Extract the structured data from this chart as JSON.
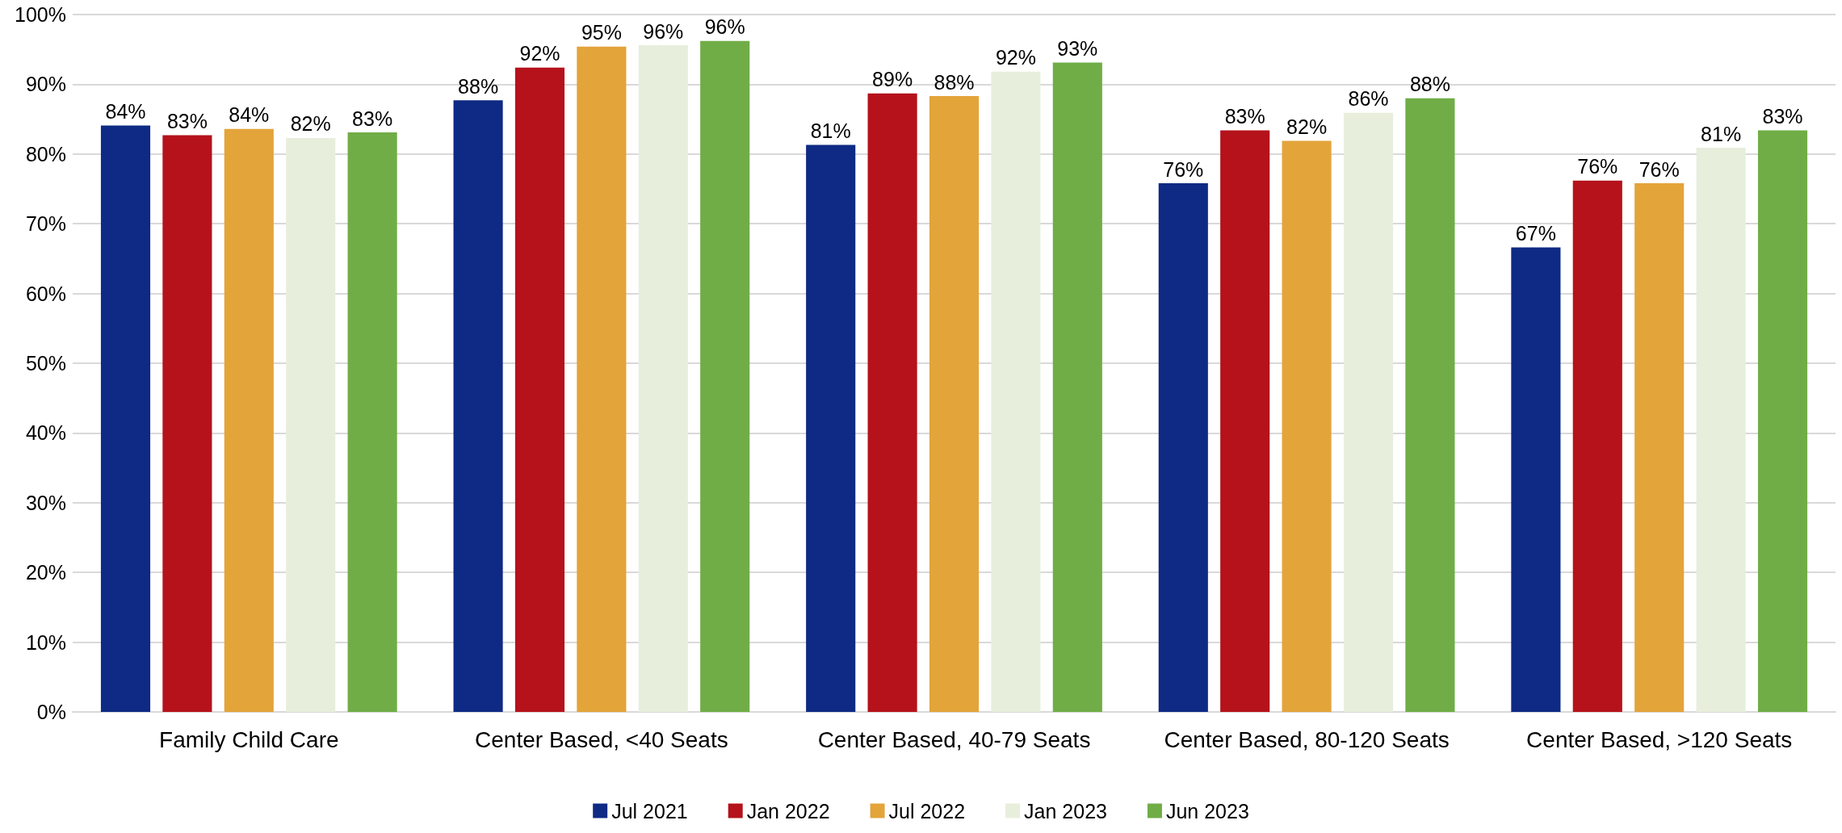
{
  "chart_data": {
    "type": "bar",
    "categories": [
      "Family Child Care",
      "Center Based, <40 Seats",
      "Center Based, 40-79 Seats",
      "Center Based, 80-120 Seats",
      "Center Based, >120 Seats"
    ],
    "series": [
      {
        "name": "Jul 2021",
        "color": "#0e2a84",
        "values": [
          84.1,
          87.7,
          81.3,
          75.8,
          66.6
        ],
        "value_labels": [
          "84%",
          "88%",
          "81%",
          "76%",
          "67%"
        ]
      },
      {
        "name": "Jan 2022",
        "color": "#b5121b",
        "values": [
          82.7,
          92.4,
          88.7,
          83.4,
          76.2
        ],
        "value_labels": [
          "83%",
          "92%",
          "89%",
          "83%",
          "76%"
        ]
      },
      {
        "name": "Jul 2022",
        "color": "#e3a43a",
        "values": [
          83.6,
          95.4,
          88.3,
          81.9,
          75.8
        ],
        "value_labels": [
          "84%",
          "95%",
          "88%",
          "82%",
          "76%"
        ]
      },
      {
        "name": "Jan 2023",
        "color": "#e8eedc",
        "values": [
          82.3,
          95.6,
          91.8,
          85.9,
          80.9
        ],
        "value_labels": [
          "82%",
          "96%",
          "92%",
          "86%",
          "81%"
        ]
      },
      {
        "name": "Jun 2023",
        "color": "#70ad47",
        "values": [
          83.1,
          96.2,
          93.1,
          88.0,
          83.4
        ],
        "value_labels": [
          "83%",
          "96%",
          "93%",
          "88%",
          "83%"
        ]
      }
    ],
    "ylim": [
      0,
      100
    ],
    "yticks": [
      {
        "value": 0,
        "label": "0%"
      },
      {
        "value": 10,
        "label": "10%"
      },
      {
        "value": 20,
        "label": "20%"
      },
      {
        "value": 30,
        "label": "30%"
      },
      {
        "value": 40,
        "label": "40%"
      },
      {
        "value": 50,
        "label": "50%"
      },
      {
        "value": 60,
        "label": "60%"
      },
      {
        "value": 70,
        "label": "70%"
      },
      {
        "value": 80,
        "label": "80%"
      },
      {
        "value": 90,
        "label": "90%"
      },
      {
        "value": 100,
        "label": "100%"
      }
    ],
    "grid": "y",
    "legend": "bottom"
  }
}
